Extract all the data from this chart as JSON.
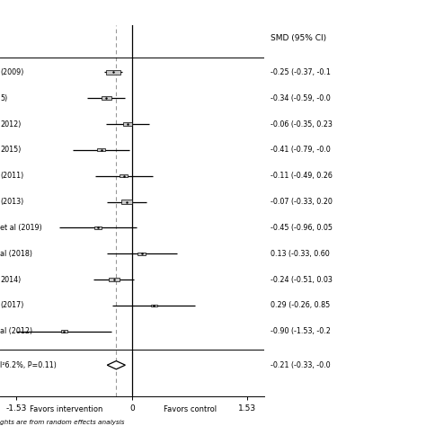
{
  "studies": [
    {
      "label": "(2009)",
      "smd": -0.25,
      "ci_lo": -0.37,
      "ci_hi": -0.13,
      "weight": 8.0,
      "text": "-0.25 (-0.37, -0.1"
    },
    {
      "label": "5)",
      "smd": -0.34,
      "ci_lo": -0.59,
      "ci_hi": -0.09,
      "weight": 5.0,
      "text": "-0.34 (-0.59, -0.0"
    },
    {
      "label": "2012)",
      "smd": -0.06,
      "ci_lo": -0.35,
      "ci_hi": 0.23,
      "weight": 4.5,
      "text": "-0.06 (-0.35, 0.23"
    },
    {
      "label": "2015)",
      "smd": -0.41,
      "ci_lo": -0.79,
      "ci_hi": -0.03,
      "weight": 3.5,
      "text": "-0.41 (-0.79, -0.0"
    },
    {
      "label": "(2011)",
      "smd": -0.11,
      "ci_lo": -0.49,
      "ci_hi": 0.27,
      "weight": 3.5,
      "text": "-0.11 (-0.49, 0.26"
    },
    {
      "label": "(2013)",
      "smd": -0.07,
      "ci_lo": -0.33,
      "ci_hi": 0.19,
      "weight": 5.5,
      "text": "-0.07 (-0.33, 0.20"
    },
    {
      "label": "et al (2019)",
      "smd": -0.45,
      "ci_lo": -0.96,
      "ci_hi": 0.06,
      "weight": 2.5,
      "text": "-0.45 (-0.96, 0.05"
    },
    {
      "label": "al (2018)",
      "smd": 0.13,
      "ci_lo": -0.33,
      "ci_hi": 0.6,
      "weight": 3.0,
      "text": "0.13 (-0.33, 0.60"
    },
    {
      "label": "2014)",
      "smd": -0.24,
      "ci_lo": -0.51,
      "ci_hi": 0.03,
      "weight": 5.0,
      "text": "-0.24 (-0.51, 0.03"
    },
    {
      "label": "(2017)",
      "smd": 0.29,
      "ci_lo": -0.26,
      "ci_hi": 0.84,
      "weight": 2.0,
      "text": "0.29 (-0.26, 0.85"
    },
    {
      "label": "al (2012)",
      "smd": -0.9,
      "ci_lo": -1.53,
      "ci_hi": -0.27,
      "weight": 2.0,
      "text": "-0.90 (-1.53, -0.2"
    }
  ],
  "pooled": {
    "label": "I²6.2%, P=0.11)",
    "smd": -0.21,
    "ci_lo": -0.33,
    "ci_hi": -0.09,
    "text": "-0.21 (-0.33, -0.0"
  },
  "xlim": [
    -1.75,
    1.75
  ],
  "xticks": [
    -1.53,
    0,
    1.53
  ],
  "xticklabels": [
    "-1.53",
    "0",
    "1.53"
  ],
  "smd_header": "SMD (95% CI)",
  "note": "ghts are from random effects analysis",
  "xlabel_left": "Favors intervention",
  "xlabel_right": "Favors control",
  "box_color": "#c8c8c8",
  "line_color": "black",
  "dashed_color": "#999999",
  "background_color": "white"
}
